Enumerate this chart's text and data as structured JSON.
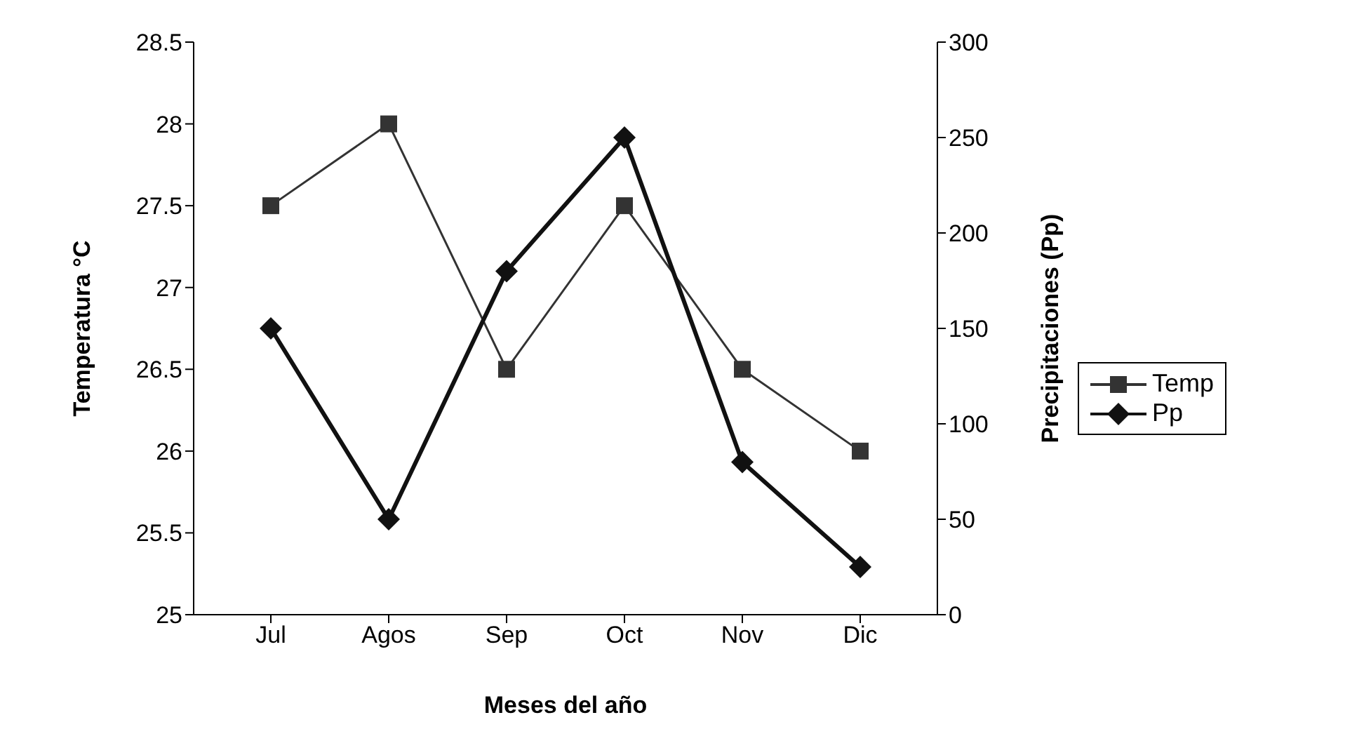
{
  "chart_data": {
    "type": "line",
    "xlabel": "Meses del año",
    "ylabel": "Temperatura °C",
    "y2label": "Precipitaciones (Pp)",
    "categories": [
      "Jul",
      "Agos",
      "Sep",
      "Oct",
      "Nov",
      "Dic"
    ],
    "series": [
      {
        "name": "Temp",
        "color": "#333333",
        "values": [
          27.5,
          28,
          26.5,
          27.5,
          26.5,
          26
        ],
        "marker": "square"
      },
      {
        "name": "Pp",
        "color": "#111111",
        "values": [
          150,
          50,
          180,
          250,
          80,
          25
        ],
        "marker": "diamond",
        "axis": "y2"
      }
    ],
    "ylim": [
      25,
      28.5
    ],
    "yticks": [
      25,
      25.5,
      26,
      26.5,
      27,
      27.5,
      28,
      28.5
    ],
    "y2lim": [
      0,
      300
    ],
    "y2ticks": [
      0,
      50,
      100,
      150,
      200,
      250,
      300
    ],
    "grid": false,
    "legend": "right",
    "line_style": "solid"
  }
}
